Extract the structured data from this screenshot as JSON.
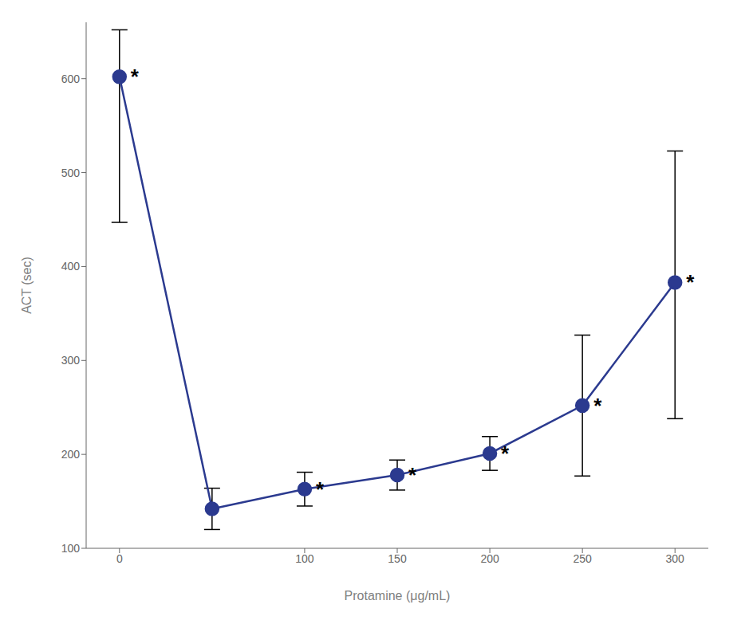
{
  "chart_data": {
    "type": "line",
    "x": [
      0,
      50,
      100,
      150,
      200,
      250,
      300
    ],
    "series": [
      {
        "color": "#2b3a8f",
        "values": [
          602,
          142,
          163,
          178,
          201,
          252,
          383
        ],
        "error_lower": [
          155,
          22,
          18,
          16,
          18,
          75,
          145
        ],
        "error_upper": [
          50,
          22,
          18,
          16,
          18,
          75,
          140
        ],
        "significant": [
          true,
          false,
          true,
          true,
          true,
          true,
          true
        ]
      }
    ],
    "annotation": "*",
    "xlabel": "Protamine (μg/mL)",
    "ylabel": "ACT (sec)",
    "xlim": [
      -18,
      318
    ],
    "ylim": [
      100,
      660
    ],
    "xticks": [
      0,
      100,
      150,
      200,
      250,
      300
    ],
    "yticks": [
      100,
      200,
      300,
      400,
      500,
      600
    ],
    "marker": "circle",
    "grid": false
  }
}
